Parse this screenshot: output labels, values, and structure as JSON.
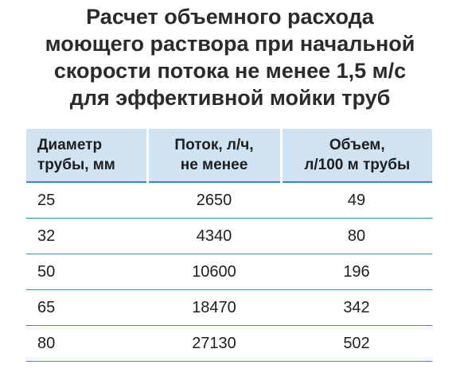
{
  "title": {
    "lines": [
      "Расчет объемного расхода",
      "моющего раствора при начальной",
      "скорости потока не менее 1,5 м/с",
      "для эффективной мойки труб"
    ]
  },
  "table": {
    "headers": [
      {
        "lines": [
          "Диаметр",
          "трубы, мм"
        ]
      },
      {
        "lines": [
          "Поток, л/ч,",
          "не менее"
        ]
      },
      {
        "lines": [
          "Объем,",
          "л/100 м трубы"
        ]
      }
    ],
    "rows": [
      [
        "25",
        "2650",
        "49"
      ],
      [
        "32",
        "4340",
        "80"
      ],
      [
        "50",
        "10600",
        "196"
      ],
      [
        "65",
        "18470",
        "342"
      ],
      [
        "80",
        "27130",
        "502"
      ]
    ]
  },
  "colors": {
    "header_background": "#cfe3f3",
    "row_rule": "#2f8fc8"
  }
}
